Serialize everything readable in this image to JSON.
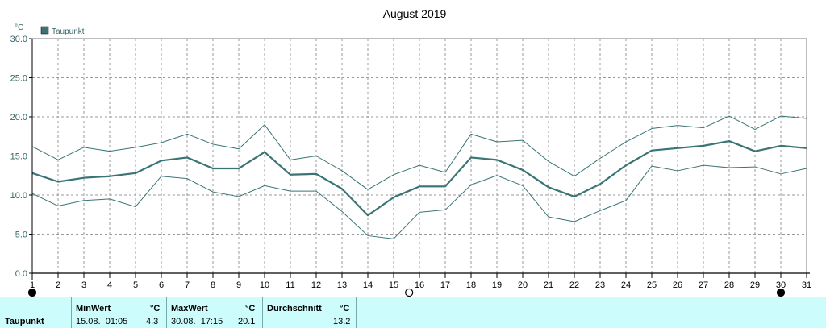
{
  "chart_data": {
    "type": "line",
    "title": "August 2019",
    "y_unit": "°C",
    "ylim": [
      0,
      30
    ],
    "y_ticks": [
      "0.0",
      "5.0",
      "10.0",
      "15.0",
      "20.0",
      "25.0",
      "30.0"
    ],
    "x": [
      1,
      2,
      3,
      4,
      5,
      6,
      7,
      8,
      9,
      10,
      11,
      12,
      13,
      14,
      15,
      16,
      17,
      18,
      19,
      20,
      21,
      22,
      23,
      24,
      25,
      26,
      27,
      28,
      29,
      30,
      31
    ],
    "grid": true,
    "legend_position": "top-left",
    "series": [
      {
        "name": "Taupunkt",
        "role": "mean",
        "color": "#3a7474",
        "values": [
          12.8,
          11.7,
          12.2,
          12.4,
          12.8,
          14.4,
          14.8,
          13.4,
          13.4,
          15.5,
          12.6,
          12.7,
          10.8,
          7.4,
          9.7,
          11.1,
          11.1,
          14.8,
          14.5,
          13.2,
          11.0,
          9.8,
          11.4,
          13.8,
          15.7,
          16.0,
          16.3,
          16.9,
          15.6,
          16.3,
          16.0
        ]
      },
      {
        "role": "max",
        "color": "#3a7474",
        "values": [
          16.2,
          14.5,
          16.1,
          15.6,
          16.1,
          16.7,
          17.8,
          16.5,
          15.9,
          19.0,
          14.5,
          15.0,
          13.1,
          10.7,
          12.6,
          13.8,
          12.9,
          17.8,
          16.8,
          17.0,
          14.3,
          12.4,
          14.7,
          16.8,
          18.5,
          18.9,
          18.6,
          20.1,
          18.4,
          20.1,
          19.8
        ]
      },
      {
        "role": "min",
        "color": "#3a7474",
        "values": [
          10.2,
          8.6,
          9.3,
          9.5,
          8.5,
          12.4,
          12.1,
          10.4,
          9.8,
          11.2,
          10.5,
          10.5,
          7.9,
          4.8,
          4.4,
          7.8,
          8.1,
          11.3,
          12.5,
          11.2,
          7.2,
          6.6,
          8.0,
          9.3,
          13.7,
          13.1,
          13.8,
          13.5,
          13.6,
          12.7,
          13.4
        ]
      }
    ],
    "moon_phases": [
      {
        "day": 1,
        "phase": "new"
      },
      {
        "day": 15.6,
        "phase": "full"
      },
      {
        "day": 30,
        "phase": "new"
      }
    ]
  },
  "stats": {
    "row_label": "Taupunkt",
    "min": {
      "header": "MinWert",
      "unit": "°C",
      "when": "15.08.  01:05",
      "value": "4.3"
    },
    "max": {
      "header": "MaxWert",
      "unit": "°C",
      "when": "30.08.  17:15",
      "value": "20.1"
    },
    "avg": {
      "header": "Durchschnitt",
      "unit": "°C",
      "value": "13.2"
    }
  }
}
